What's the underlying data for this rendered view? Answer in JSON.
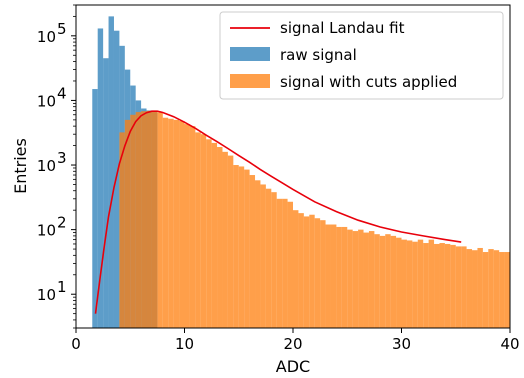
{
  "chart_data": {
    "type": "histogram",
    "xlabel": "ADC",
    "ylabel": "Entries",
    "xlim": [
      0,
      40
    ],
    "ylim": [
      3,
      300000
    ],
    "y_scale": "log",
    "grid": false,
    "legend_placement": "top-right",
    "x_ticks": [
      {
        "value": 0,
        "label": "0"
      },
      {
        "value": 10,
        "label": "10"
      },
      {
        "value": 20,
        "label": "20"
      },
      {
        "value": 30,
        "label": "30"
      },
      {
        "value": 40,
        "label": "40"
      }
    ],
    "y_ticks": [
      {
        "value": 10,
        "label": "10",
        "exp": "1"
      },
      {
        "value": 100,
        "label": "10",
        "exp": "2"
      },
      {
        "value": 1000,
        "label": "10",
        "exp": "3"
      },
      {
        "value": 10000,
        "label": "10",
        "exp": "4"
      },
      {
        "value": 100000,
        "label": "10",
        "exp": "5"
      }
    ],
    "bin_width": 0.5,
    "legend": [
      "signal Landau fit",
      "raw signal",
      "signal with cuts applied"
    ],
    "series": [
      {
        "name": "raw signal",
        "kind": "bars",
        "color": "#1f77b4",
        "bins_start": [
          1.5,
          2.0,
          2.5,
          3.0,
          3.5,
          4.0,
          4.5,
          5.0,
          5.5,
          6.0,
          6.5,
          7.0
        ],
        "values": [
          15000,
          130000,
          45000,
          200000,
          120000,
          70000,
          30000,
          17000,
          10000,
          7500,
          7000,
          6900
        ]
      },
      {
        "name": "signal with cuts applied",
        "kind": "bars",
        "color": "#ff7f0e",
        "bins_start": [
          3.5,
          4.0,
          4.5,
          5.0,
          5.5,
          6.0,
          6.5,
          7.0,
          7.5,
          8.0,
          8.5,
          9.0,
          9.5,
          10.0,
          10.5,
          11.0,
          11.5,
          12.0,
          12.5,
          13.0,
          13.5,
          14.0,
          14.5,
          15.0,
          15.5,
          16.0,
          16.5,
          17.0,
          17.5,
          18.0,
          18.5,
          19.0,
          19.5,
          20.0,
          20.5,
          21.0,
          21.5,
          22.0,
          22.5,
          23.0,
          23.5,
          24.0,
          24.5,
          25.0,
          25.5,
          26.0,
          26.5,
          27.0,
          27.5,
          28.0,
          28.5,
          29.0,
          29.5,
          30.0,
          30.5,
          31.0,
          31.5,
          32.0,
          32.5,
          33.0,
          33.5,
          34.0,
          34.5,
          35.0,
          35.5,
          36.0,
          36.5,
          37.0,
          37.5,
          38.0,
          38.5,
          39.0,
          39.5
        ],
        "values": [
          3,
          3200,
          5000,
          6000,
          6600,
          6800,
          6900,
          6900,
          6500,
          5400,
          5200,
          5000,
          4800,
          4300,
          4000,
          3200,
          3000,
          2500,
          2200,
          1900,
          1600,
          1400,
          1000,
          950,
          850,
          700,
          580,
          500,
          430,
          380,
          300,
          300,
          270,
          200,
          180,
          160,
          170,
          150,
          140,
          120,
          120,
          110,
          110,
          100,
          95,
          100,
          90,
          95,
          85,
          80,
          85,
          80,
          75,
          70,
          68,
          65,
          70,
          62,
          70,
          60,
          62,
          60,
          58,
          55,
          55,
          50,
          48,
          52,
          45,
          50,
          48,
          45,
          45
        ]
      },
      {
        "name": "signal Landau fit",
        "kind": "line",
        "color": "#e8000b",
        "x": [
          1.8,
          2.2,
          2.6,
          3.0,
          3.5,
          4.0,
          4.5,
          5.0,
          5.5,
          6.0,
          6.5,
          7.0,
          7.5,
          8.0,
          9.0,
          10.0,
          11.0,
          12.0,
          13.0,
          14.0,
          15.0,
          16.0,
          17.0,
          18.0,
          19.0,
          20.0,
          22.0,
          24.0,
          26.0,
          28.0,
          30.0,
          32.0,
          34.0,
          35.5
        ],
        "y": [
          5,
          17,
          54,
          158,
          450,
          1050,
          1970,
          3330,
          4700,
          5800,
          6450,
          6800,
          6800,
          6500,
          5600,
          4600,
          3700,
          2900,
          2300,
          1800,
          1400,
          1100,
          850,
          670,
          530,
          420,
          270,
          190,
          140,
          110,
          92,
          80,
          70,
          64
        ]
      }
    ]
  }
}
